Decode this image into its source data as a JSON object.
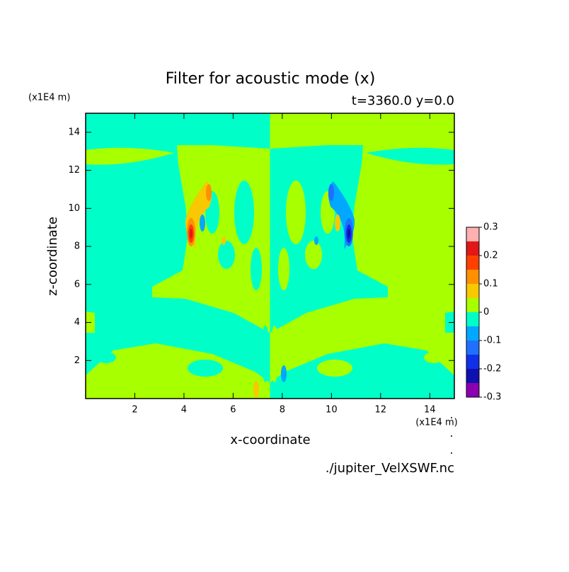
{
  "chart_data": {
    "type": "contour",
    "title": "Filter for acoustic mode (x)",
    "subtitle": "t=3360.0 y=0.0",
    "xlabel": "x-coordinate",
    "ylabel": "z-coordinate",
    "x_unit": "(x1E4 m)",
    "y_unit": "(x1E4 m)",
    "source": "./jupiter_VelXSWF.nc",
    "xlim": [
      0,
      15
    ],
    "ylim": [
      0,
      15
    ],
    "xticks": [
      2,
      4,
      6,
      8,
      10,
      12,
      14
    ],
    "yticks": [
      2,
      4,
      6,
      8,
      10,
      12,
      14
    ],
    "levels": [
      -0.3,
      -0.25,
      -0.2,
      -0.15,
      -0.1,
      -0.05,
      0,
      0.05,
      0.1,
      0.15,
      0.2,
      0.25,
      0.3
    ],
    "colors": [
      "#8a00b0",
      "#1010b0",
      "#1030e8",
      "#2070ff",
      "#00a8ff",
      "#00ffc8",
      "#a8ff00",
      "#f8c800",
      "#ff9000",
      "#ff4000",
      "#e01818",
      "#ffb0b0"
    ],
    "colorbar_ticks": [
      -0.3,
      -0.2,
      -0.1,
      0,
      0.1,
      0.2,
      0.3
    ]
  }
}
